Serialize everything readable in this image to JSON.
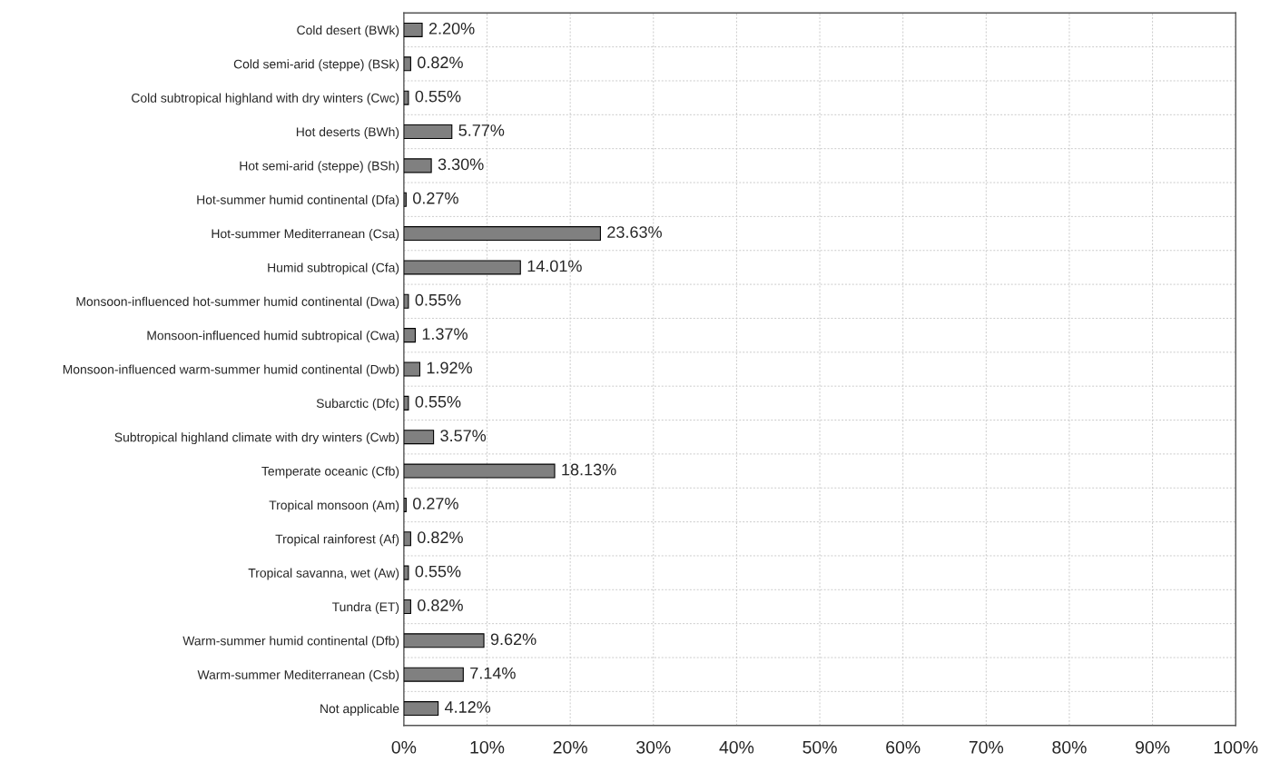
{
  "chart_data": {
    "type": "bar",
    "orientation": "horizontal",
    "categories": [
      "Cold desert (BWk)",
      "Cold semi-arid (steppe) (BSk)",
      "Cold subtropical highland with dry winters (Cwc)",
      "Hot deserts (BWh)",
      "Hot semi-arid (steppe) (BSh)",
      "Hot-summer humid continental (Dfa)",
      "Hot-summer Mediterranean (Csa)",
      "Humid subtropical (Cfa)",
      "Monsoon-influenced hot-summer humid continental (Dwa)",
      "Monsoon-influenced humid subtropical (Cwa)",
      "Monsoon-influenced warm-summer humid continental (Dwb)",
      "Subarctic (Dfc)",
      "Subtropical highland climate with dry winters (Cwb)",
      "Temperate oceanic (Cfb)",
      "Tropical monsoon (Am)",
      "Tropical rainforest (Af)",
      "Tropical savanna, wet (Aw)",
      "Tundra (ET)",
      "Warm-summer humid continental (Dfb)",
      "Warm-summer Mediterranean (Csb)",
      "Not applicable"
    ],
    "values": [
      2.2,
      0.82,
      0.55,
      5.77,
      3.3,
      0.27,
      23.63,
      14.01,
      0.55,
      1.37,
      1.92,
      0.55,
      3.57,
      18.13,
      0.27,
      0.82,
      0.55,
      0.82,
      9.62,
      7.14,
      4.12
    ],
    "value_labels": [
      "2.20%",
      "0.82%",
      "0.55%",
      "5.77%",
      "3.30%",
      "0.27%",
      "23.63%",
      "14.01%",
      "0.55%",
      "1.37%",
      "1.92%",
      "0.55%",
      "3.57%",
      "18.13%",
      "0.27%",
      "0.82%",
      "0.55%",
      "0.82%",
      "9.62%",
      "7.14%",
      "4.12%"
    ],
    "color": "#808080",
    "xlim": [
      0,
      100
    ],
    "xticks": [
      {
        "value": 0,
        "label": "0%"
      },
      {
        "value": 10,
        "label": "10%"
      },
      {
        "value": 20,
        "label": "20%"
      },
      {
        "value": 30,
        "label": "30%"
      },
      {
        "value": 40,
        "label": "40%"
      },
      {
        "value": 50,
        "label": "50%"
      },
      {
        "value": 60,
        "label": "60%"
      },
      {
        "value": 70,
        "label": "70%"
      },
      {
        "value": 80,
        "label": "80%"
      },
      {
        "value": 90,
        "label": "90%"
      },
      {
        "value": 100,
        "label": "100%"
      }
    ],
    "grid": true
  }
}
